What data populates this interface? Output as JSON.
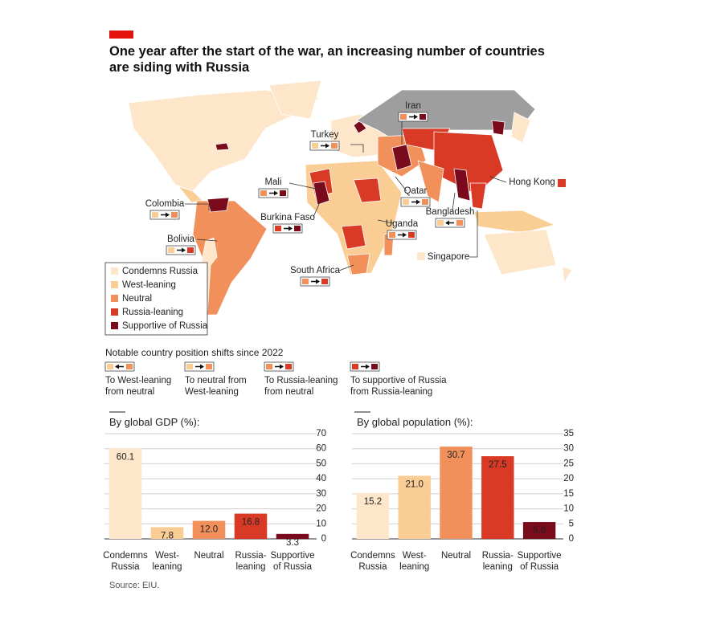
{
  "title": "One year after the start of the war, an increasing number of countries are siding with Russia",
  "map_labels": [
    "Iran",
    "Turkey",
    "Mali",
    "Colombia",
    "Burkina Faso",
    "Qatar",
    "Bangladesh",
    "Uganda",
    "Bolivia",
    "South Africa",
    "Hong Kong",
    "Singapore"
  ],
  "legend": [
    {
      "name": "Condemns Russia",
      "color": "#fde6c9"
    },
    {
      "name": "West-leaning",
      "color": "#f9cd94"
    },
    {
      "name": "Neutral",
      "color": "#f1905a"
    },
    {
      "name": "Russia-leaning",
      "color": "#d93a26"
    },
    {
      "name": "Supportive of Russia",
      "color": "#7a0b1c"
    }
  ],
  "shifts": {
    "title": "Notable country position shifts since 2022",
    "items": [
      "To West-leaning from neutral",
      "To neutral from West-leaning",
      "To Russia-leaning from neutral",
      "To supportive of Russia from Russia-leaning"
    ]
  },
  "chart_data": [
    {
      "type": "bar",
      "title": "By global GDP (%):",
      "categories": [
        "Condemns Russia",
        "West-leaning",
        "Neutral",
        "Russia-leaning",
        "Supportive of Russia"
      ],
      "values": [
        60.1,
        7.8,
        12.0,
        16.8,
        3.3
      ],
      "value_labels": [
        "60.1",
        "7.8",
        "12.0",
        "16.8",
        "3.3"
      ],
      "colors": [
        "#fde6c9",
        "#f9cd94",
        "#f1905a",
        "#d93a26",
        "#7a0b1c"
      ],
      "ylim": [
        0,
        70
      ],
      "yticks": [
        0,
        10,
        20,
        30,
        40,
        50,
        60,
        70
      ],
      "grid": true
    },
    {
      "type": "bar",
      "title": "By global population (%):",
      "categories": [
        "Condemns Russia",
        "West-leaning",
        "Neutral",
        "Russia-leaning",
        "Supportive of Russia"
      ],
      "values": [
        15.2,
        21.0,
        30.7,
        27.5,
        5.6
      ],
      "value_labels": [
        "15.2",
        "21.0",
        "30.7",
        "27.5",
        "5.6"
      ],
      "colors": [
        "#fde6c9",
        "#f9cd94",
        "#f1905a",
        "#d93a26",
        "#7a0b1c"
      ],
      "ylim": [
        0,
        35
      ],
      "yticks": [
        0,
        5,
        10,
        15,
        20,
        25,
        30,
        35
      ],
      "grid": true
    }
  ],
  "source": "Source: EIU."
}
